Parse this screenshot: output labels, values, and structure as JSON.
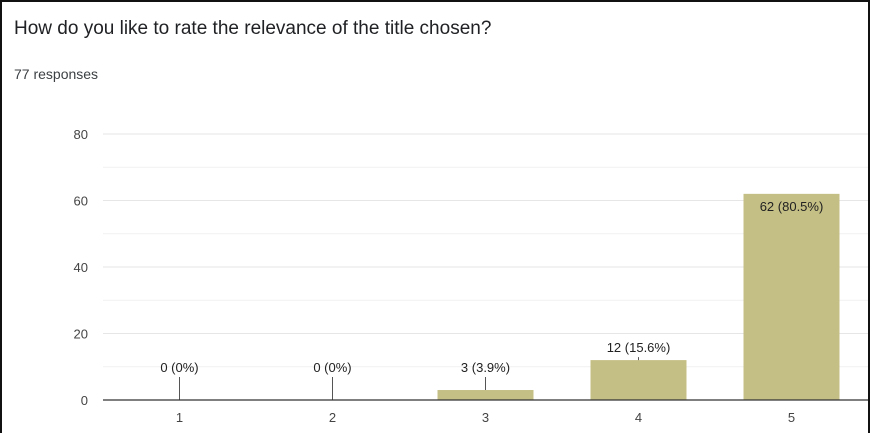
{
  "question": {
    "title": "How do you like to rate the relevance of the title chosen?",
    "responses": "77 responses"
  },
  "colors": {
    "bar": "#c4bf85",
    "bar_edge": "#a8a36a",
    "grid": "#e6e6e6",
    "axis": "#333333",
    "label_line": "#555555"
  },
  "chart_data": {
    "type": "bar",
    "title": "How do you like to rate the relevance of the title chosen?",
    "categories": [
      "1",
      "2",
      "3",
      "4",
      "5"
    ],
    "values": [
      0,
      0,
      3,
      12,
      62
    ],
    "data_labels": [
      "0 (0%)",
      "0 (0%)",
      "3 (3.9%)",
      "12 (15.6%)",
      "62 (80.5%)"
    ],
    "yticks": [
      "0",
      "20",
      "40",
      "60",
      "80"
    ],
    "ytick_values": [
      0,
      20,
      40,
      60,
      80
    ],
    "ylim": [
      0,
      80
    ],
    "xlabel": "",
    "ylabel": "",
    "grid": true,
    "legend": "none"
  }
}
